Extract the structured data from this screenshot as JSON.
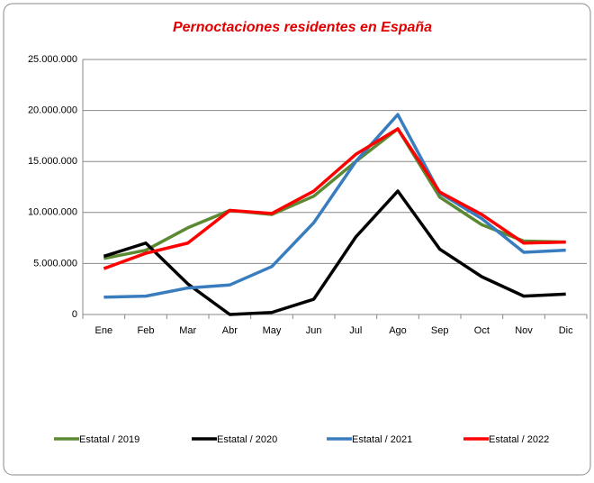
{
  "chart_data": {
    "type": "line",
    "title": "Pernoctaciones residentes en España",
    "categories": [
      "Ene",
      "Feb",
      "Mar",
      "Abr",
      "May",
      "Jun",
      "Jul",
      "Ago",
      "Sep",
      "Oct",
      "Nov",
      "Dic"
    ],
    "series": [
      {
        "name": "Estatal / 2019",
        "color": "#5b8a32",
        "values": [
          5500000,
          6300000,
          8500000,
          10200000,
          9800000,
          11600000,
          15000000,
          18200000,
          11500000,
          8800000,
          7200000,
          7100000
        ]
      },
      {
        "name": "Estatal / 2020",
        "color": "#000000",
        "values": [
          5700000,
          7000000,
          3000000,
          0,
          200000,
          1500000,
          7600000,
          12100000,
          6400000,
          3700000,
          1800000,
          2000000
        ]
      },
      {
        "name": "Estatal / 2021",
        "color": "#3a7dbf",
        "values": [
          1700000,
          1800000,
          2600000,
          2900000,
          4700000,
          9000000,
          15000000,
          19600000,
          11900000,
          9400000,
          6100000,
          6300000
        ]
      },
      {
        "name": "Estatal / 2022",
        "color": "#ff0000",
        "values": [
          4500000,
          6000000,
          7000000,
          10200000,
          9900000,
          12100000,
          15700000,
          18200000,
          12000000,
          9800000,
          7000000,
          7100000
        ]
      }
    ],
    "ylim": [
      0,
      25000000
    ],
    "yticks": [
      0,
      {
        "value": 5000000,
        "label": "5.000.000"
      },
      {
        "value": 10000000,
        "label": "10.000.000"
      },
      {
        "value": 15000000,
        "label": "15.000.000"
      },
      {
        "value": 20000000,
        "label": "20.000.000"
      },
      {
        "value": 25000000,
        "label": "25.000.000"
      }
    ],
    "grid": true
  }
}
